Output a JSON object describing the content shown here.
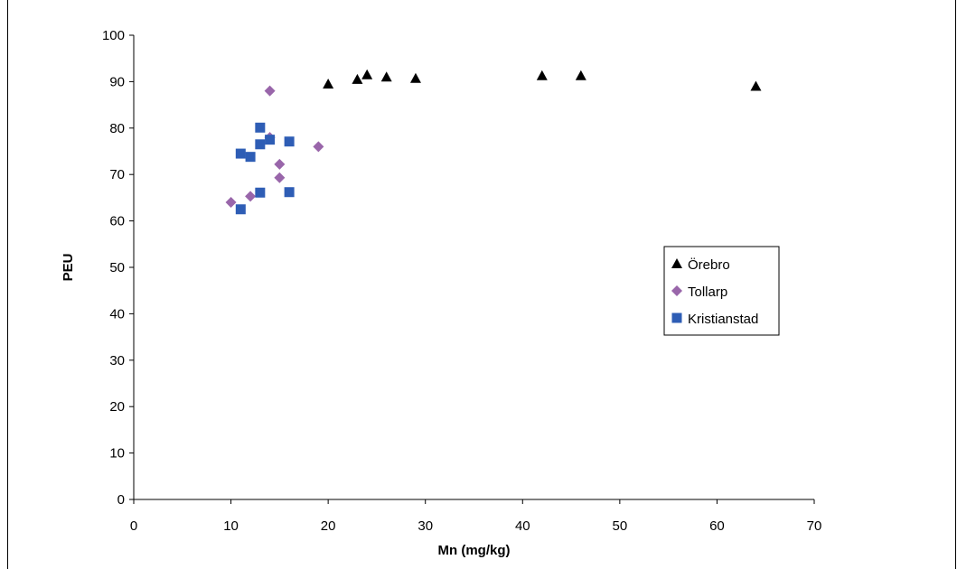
{
  "chart_data": {
    "type": "scatter",
    "title": "",
    "xlabel": "Mn (mg/kg)",
    "ylabel": "PEU",
    "xlim": [
      0,
      70
    ],
    "ylim": [
      0,
      100
    ],
    "x_ticks": [
      0,
      10,
      20,
      30,
      40,
      50,
      60,
      70
    ],
    "y_ticks": [
      0,
      10,
      20,
      30,
      40,
      50,
      60,
      70,
      80,
      90,
      100
    ],
    "grid": false,
    "legend_position": "right",
    "series": [
      {
        "name": "Örebro",
        "marker": "triangle",
        "color": "#000000",
        "x": [
          20,
          23,
          24,
          26,
          29,
          42,
          46,
          64
        ],
        "y": [
          89.5,
          90.5,
          91.5,
          91,
          90.7,
          91.3,
          91.3,
          89
        ]
      },
      {
        "name": "Tollarp",
        "marker": "diamond",
        "color": "#9966AA",
        "x": [
          10,
          12,
          14,
          14,
          15,
          15,
          19
        ],
        "y": [
          64,
          65.3,
          88,
          78,
          72.2,
          69.3,
          76
        ]
      },
      {
        "name": "Kristianstad",
        "marker": "square",
        "color": "#2E5DB5",
        "x": [
          11,
          11,
          12,
          13,
          13,
          13,
          14,
          16,
          16
        ],
        "y": [
          62.5,
          74.5,
          73.8,
          80.1,
          76.5,
          66.1,
          77.5,
          77.1,
          66.2
        ]
      }
    ]
  }
}
